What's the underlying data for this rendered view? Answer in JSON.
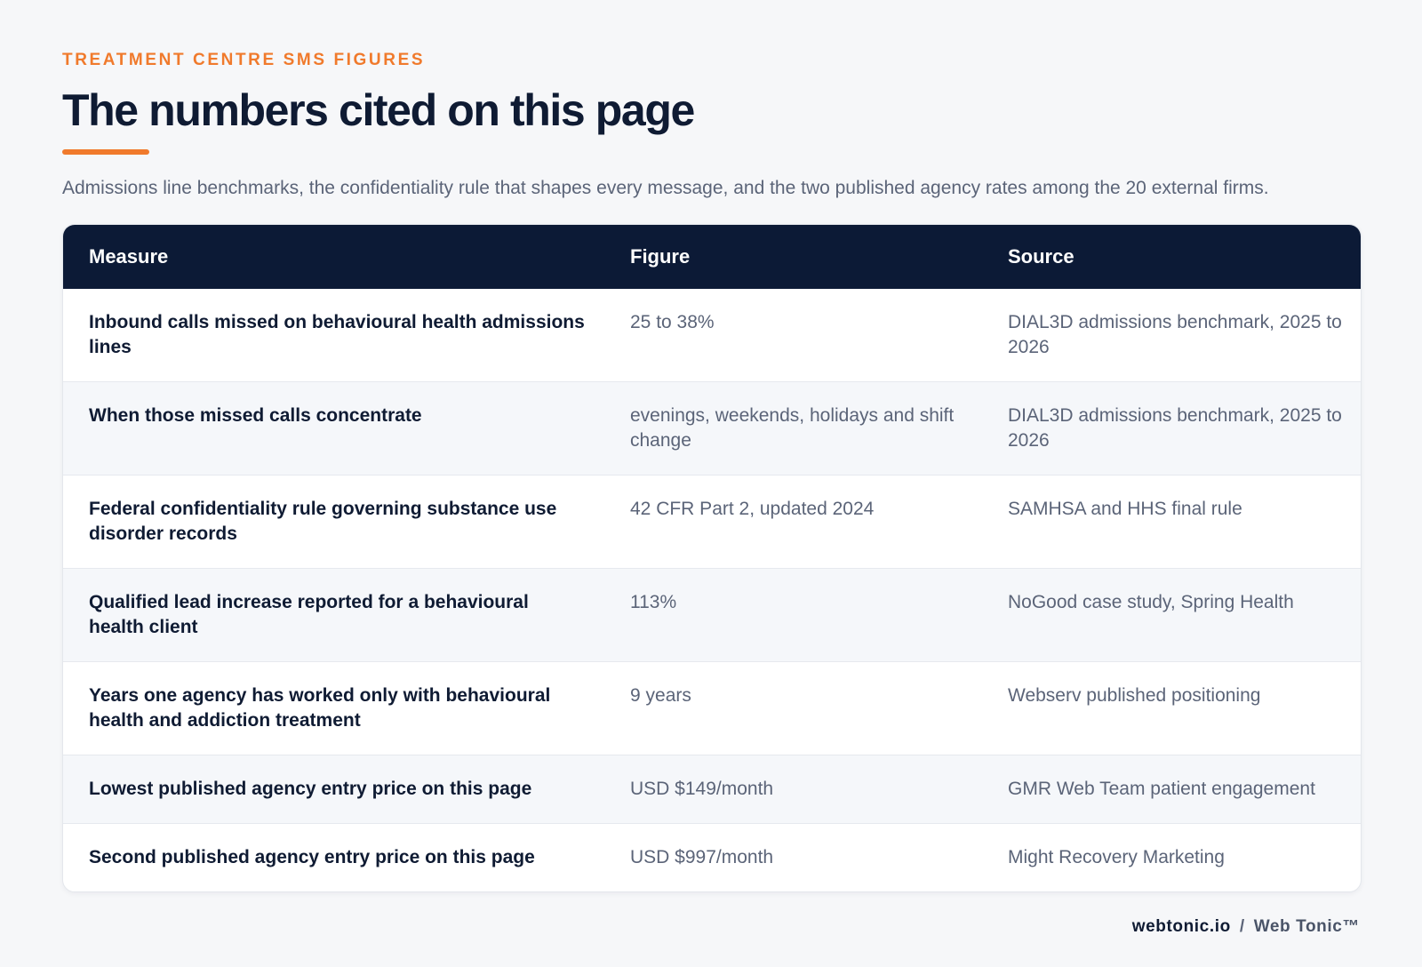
{
  "header": {
    "eyebrow": "TREATMENT CENTRE SMS FIGURES",
    "title": "The numbers cited on this page",
    "subtitle": "Admissions line benchmarks, the confidentiality rule that shapes every message, and the two published agency rates among the 20 external firms."
  },
  "table": {
    "columns": [
      "Measure",
      "Figure",
      "Source"
    ],
    "rows": [
      {
        "measure": "Inbound calls missed on behavioural health admissions lines",
        "figure": "25 to 38%",
        "source": "DIAL3D admissions benchmark, 2025 to 2026"
      },
      {
        "measure": "When those missed calls concentrate",
        "figure": "evenings, weekends, holidays and shift change",
        "source": "DIAL3D admissions benchmark, 2025 to 2026"
      },
      {
        "measure": "Federal confidentiality rule governing substance use disorder records",
        "figure": "42 CFR Part 2, updated 2024",
        "source": "SAMHSA and HHS final rule"
      },
      {
        "measure": "Qualified lead increase reported for a behavioural health client",
        "figure": "113%",
        "source": "NoGood case study, Spring Health"
      },
      {
        "measure": "Years one agency has worked only with behavioural health and addiction treatment",
        "figure": "9 years",
        "source": "Webserv published positioning"
      },
      {
        "measure": "Lowest published agency entry price on this page",
        "figure": "USD $149/month",
        "source": "GMR Web Team patient engagement"
      },
      {
        "measure": "Second published agency entry price on this page",
        "figure": "USD $997/month",
        "source": "Might Recovery Marketing"
      }
    ]
  },
  "footer": {
    "domain": "webtonic.io",
    "separator": "/",
    "brand": "Web Tonic™"
  },
  "colors": {
    "accent": "#f07a2c",
    "header_bg": "#0c1a36",
    "text_dark": "#0f1b33",
    "text_muted": "#5b6478",
    "row_alt": "#f5f7fa"
  }
}
